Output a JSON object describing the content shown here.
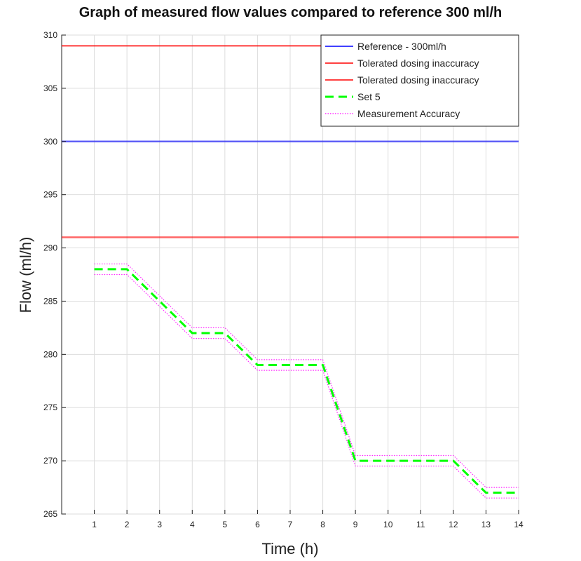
{
  "chart_data": {
    "type": "line",
    "title": "Graph of measured flow values compared to reference 300 ml/h",
    "xlabel": "Time (h)",
    "ylabel": "Flow (ml/h)",
    "xlim": [
      0,
      14
    ],
    "ylim": [
      265,
      310
    ],
    "xticks": [
      1,
      2,
      3,
      4,
      5,
      6,
      7,
      8,
      9,
      10,
      11,
      12,
      13,
      14
    ],
    "yticks": [
      265,
      270,
      275,
      280,
      285,
      290,
      295,
      300,
      305,
      310
    ],
    "grid": true,
    "legend_position": "top-right",
    "series": [
      {
        "name": "Reference - 300ml/h",
        "color": "#0000ff",
        "style": "solid",
        "x": [
          0,
          14
        ],
        "y": [
          300,
          300
        ]
      },
      {
        "name": "Tolerated dosing inaccuracy",
        "color": "#ff0000",
        "style": "solid",
        "x": [
          0,
          14
        ],
        "y": [
          309,
          309
        ]
      },
      {
        "name": "Tolerated dosing inaccuracy",
        "color": "#ff0000",
        "style": "solid",
        "x": [
          0,
          14
        ],
        "y": [
          291,
          291
        ]
      },
      {
        "name": "Set 5",
        "color": "#00ff00",
        "style": "dashed",
        "x": [
          1,
          2,
          3,
          4,
          5,
          6,
          7,
          8,
          9,
          10,
          11,
          12,
          13,
          14
        ],
        "y": [
          288,
          288,
          285,
          282,
          282,
          279,
          279,
          279,
          270,
          270,
          270,
          270,
          267,
          267
        ]
      },
      {
        "name": "Measurement Accuracy",
        "color": "#ff00ff",
        "style": "dotted",
        "x": [
          1,
          2,
          3,
          4,
          5,
          6,
          7,
          8,
          9,
          10,
          11,
          12,
          13,
          14
        ],
        "y": [
          288.5,
          288.5,
          285.5,
          282.5,
          282.5,
          279.5,
          279.5,
          279.5,
          270.5,
          270.5,
          270.5,
          270.5,
          267.5,
          267.5
        ]
      },
      {
        "name": "",
        "color": "#ff00ff",
        "style": "dotted",
        "x": [
          1,
          2,
          3,
          4,
          5,
          6,
          7,
          8,
          9,
          10,
          11,
          12,
          13,
          14
        ],
        "y": [
          287.5,
          287.5,
          284.5,
          281.5,
          281.5,
          278.5,
          278.5,
          278.5,
          269.5,
          269.5,
          269.5,
          269.5,
          266.5,
          266.5
        ]
      }
    ],
    "legend": [
      {
        "label": "Reference - 300ml/h",
        "color": "#0000ff",
        "style": "solid"
      },
      {
        "label": "Tolerated dosing inaccuracy",
        "color": "#ff0000",
        "style": "solid"
      },
      {
        "label": "Tolerated dosing inaccuracy",
        "color": "#ff0000",
        "style": "solid"
      },
      {
        "label": "Set 5",
        "color": "#00ff00",
        "style": "dashed"
      },
      {
        "label": "Measurement Accuracy",
        "color": "#ff00ff",
        "style": "dotted"
      }
    ]
  }
}
